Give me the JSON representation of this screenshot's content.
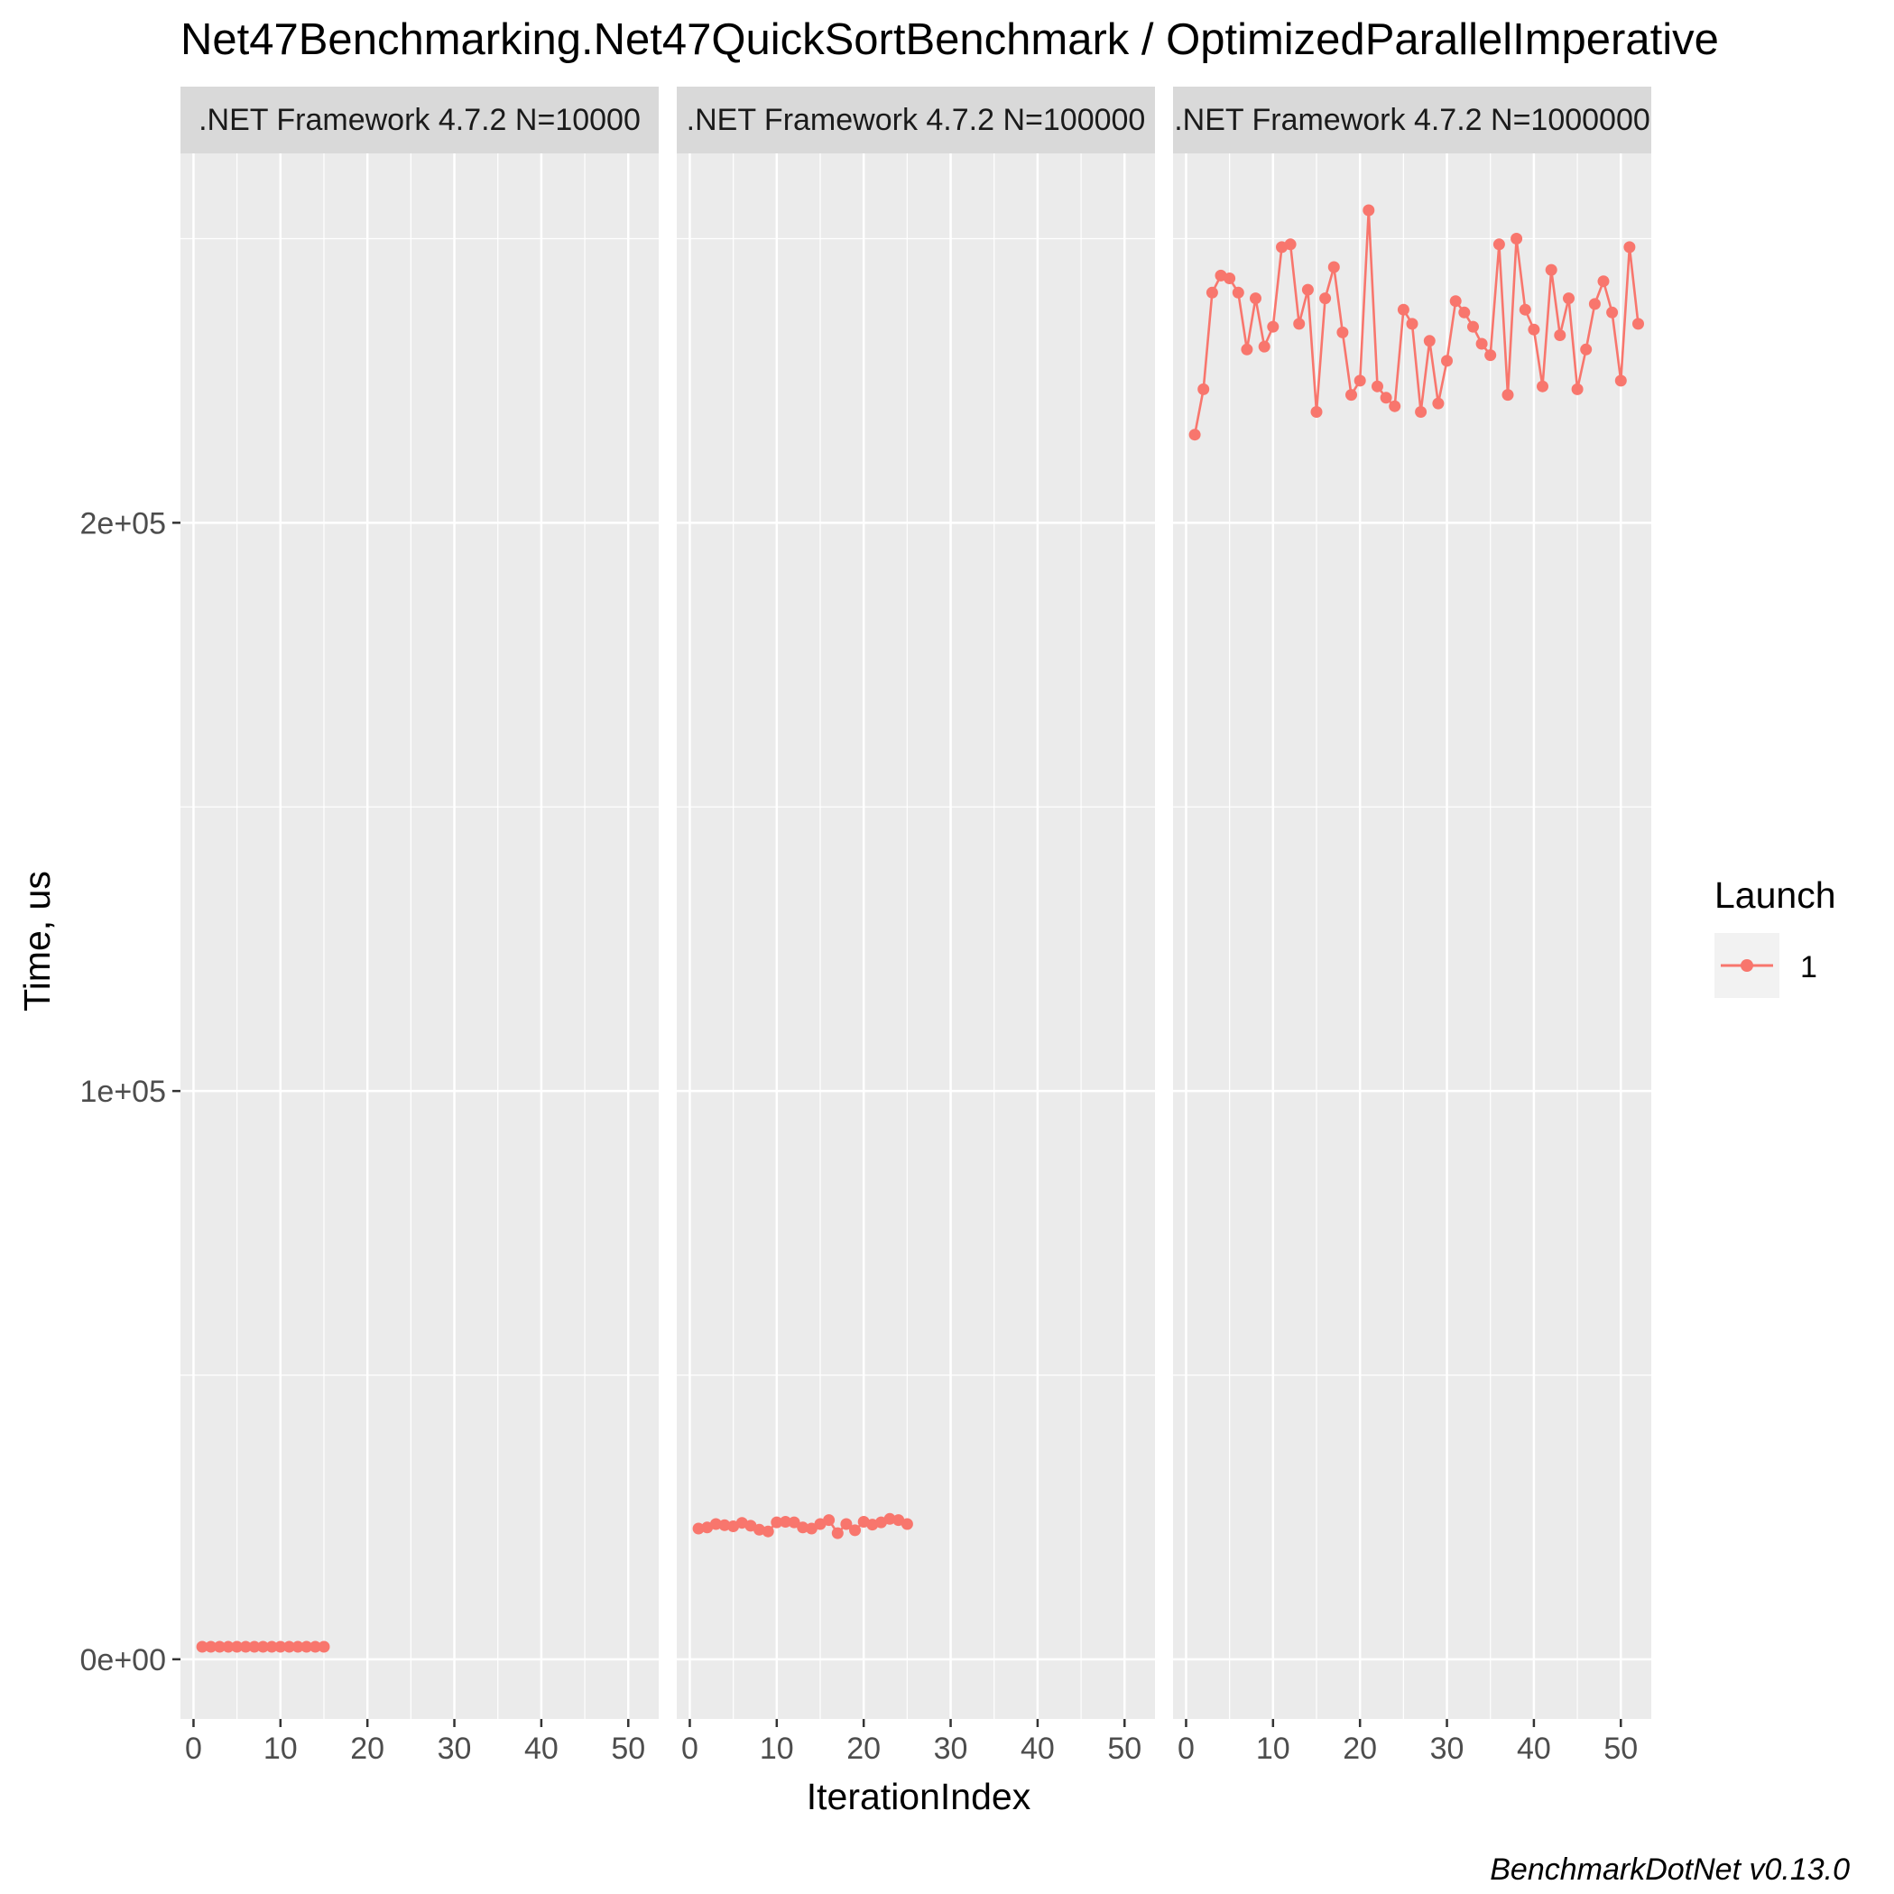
{
  "chart_data": {
    "type": "line",
    "title": "Net47Benchmarking.Net47QuickSortBenchmark / OptimizedParallelImperative",
    "xlabel": "IterationIndex",
    "ylabel": "Time, us",
    "caption": "BenchmarkDotNet v0.13.0",
    "xlim": [
      -1.5,
      53.5
    ],
    "ylim": [
      -10500,
      265000
    ],
    "x_ticks": [
      0,
      10,
      20,
      30,
      40,
      50
    ],
    "x_tick_labels": [
      "0",
      "10",
      "20",
      "30",
      "40",
      "50"
    ],
    "y_ticks": [
      0,
      100000,
      200000
    ],
    "y_tick_labels": [
      "0e+00",
      "1e+05",
      "2e+05"
    ],
    "y_minor_ticks": [
      50000,
      150000,
      250000
    ],
    "grid": true,
    "legend": {
      "title": "Launch",
      "position": "right",
      "entries": [
        {
          "label": "1",
          "color": "#F8766D"
        }
      ]
    },
    "series_color": "#F8766D",
    "panels": [
      {
        "strip": ".NET Framework 4.7.2 N=10000",
        "series": [
          {
            "name": "1",
            "x": [
              1,
              2,
              3,
              4,
              5,
              6,
              7,
              8,
              9,
              10,
              11,
              12,
              13,
              14,
              15
            ],
            "y": [
              2200,
              2200,
              2200,
              2200,
              2200,
              2200,
              2200,
              2200,
              2200,
              2200,
              2200,
              2200,
              2200,
              2200,
              2200
            ]
          }
        ]
      },
      {
        "strip": ".NET Framework 4.7.2 N=100000",
        "series": [
          {
            "name": "1",
            "x": [
              1,
              2,
              3,
              4,
              5,
              6,
              7,
              8,
              9,
              10,
              11,
              12,
              13,
              14,
              15,
              16,
              17,
              18,
              19,
              20,
              21,
              22,
              23,
              24,
              25
            ],
            "y": [
              23000,
              23200,
              23800,
              23600,
              23400,
              24000,
              23500,
              22800,
              22500,
              24100,
              24200,
              24100,
              23200,
              23000,
              23800,
              24500,
              22200,
              23800,
              22700,
              24200,
              23700,
              24100,
              24700,
              24500,
              23800
            ]
          }
        ]
      },
      {
        "strip": ".NET Framework 4.7.2 N=1000000",
        "series": [
          {
            "name": "1",
            "x": [
              1,
              2,
              3,
              4,
              5,
              6,
              7,
              8,
              9,
              10,
              11,
              12,
              13,
              14,
              15,
              16,
              17,
              18,
              19,
              20,
              21,
              22,
              23,
              24,
              25,
              26,
              27,
              28,
              29,
              30,
              31,
              32,
              33,
              34,
              35,
              36,
              37,
              38,
              39,
              40,
              41,
              42,
              43,
              44,
              45,
              46,
              47,
              48,
              49,
              50,
              51,
              52
            ],
            "y": [
              215500,
              223500,
              240500,
              243500,
              243000,
              240500,
              230500,
              239500,
              231000,
              234500,
              248500,
              249000,
              235000,
              241000,
              219500,
              239500,
              245000,
              233500,
              222500,
              225000,
              255000,
              224000,
              222000,
              220500,
              237500,
              235000,
              219500,
              232000,
              221000,
              228500,
              239000,
              237000,
              234500,
              231500,
              229500,
              249000,
              222500,
              250000,
              237500,
              234000,
              224000,
              244500,
              233000,
              239500,
              223500,
              230500,
              238500,
              242500,
              237000,
              225000,
              248500,
              235000
            ]
          }
        ]
      }
    ]
  }
}
